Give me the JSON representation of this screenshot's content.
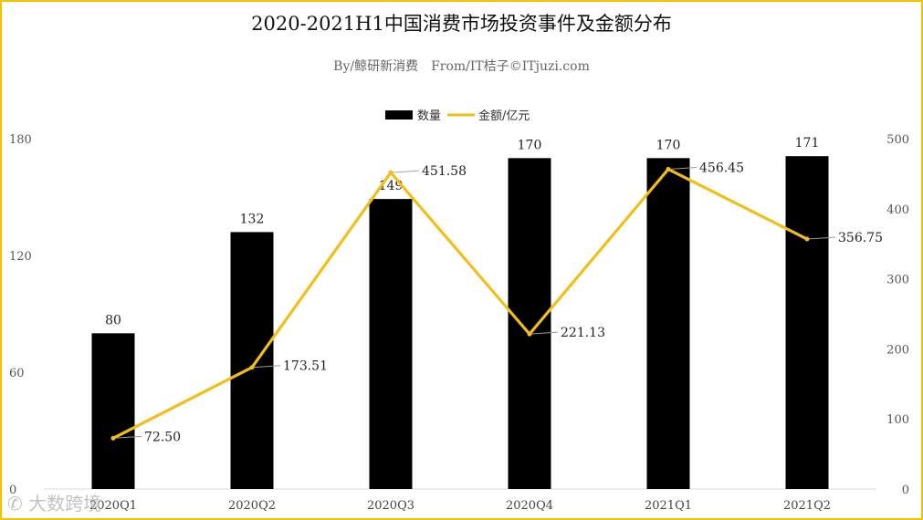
{
  "chart_data": {
    "type": "bar+line",
    "title": "2020-2021H1中国消费市场投资事件及金额分布",
    "subtitle": "By/鲸研新消费　From/IT桔子©ITjuzi.com",
    "categories": [
      "2020Q1",
      "2020Q2",
      "2020Q3",
      "2020Q4",
      "2021Q1",
      "2021Q2"
    ],
    "series": [
      {
        "name": "数量",
        "type": "bar",
        "axis": "left",
        "values": [
          80,
          132,
          149,
          170,
          170,
          171
        ],
        "color": "#000000"
      },
      {
        "name": "金额/亿元",
        "type": "line",
        "axis": "right",
        "values": [
          72.5,
          173.51,
          451.58,
          221.13,
          456.45,
          356.75
        ],
        "color": "#f2be1a"
      }
    ],
    "bar_labels": [
      "80",
      "132",
      "149",
      "170",
      "170",
      "171"
    ],
    "line_labels": [
      "72.50",
      "173.51",
      "451.58",
      "221.13",
      "456.45",
      "356.75"
    ],
    "left_axis": {
      "ylim": [
        0,
        180
      ],
      "ticks": [
        "0",
        "60",
        "120",
        "180"
      ]
    },
    "right_axis": {
      "ylim": [
        0,
        500
      ],
      "ticks": [
        "0",
        "100",
        "200",
        "300",
        "400",
        "500"
      ]
    },
    "legend_position": "top-center",
    "grid": false
  },
  "watermark": "大数跨境"
}
